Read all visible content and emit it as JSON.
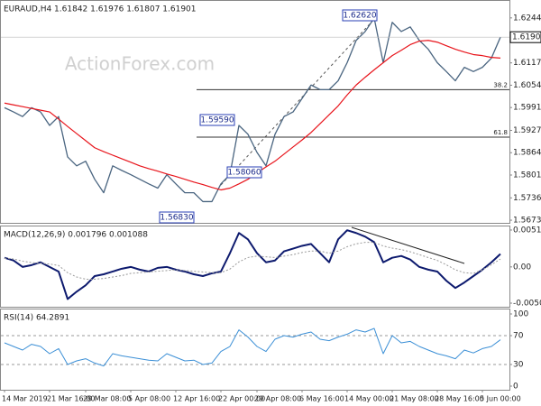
{
  "chart_data": [
    {
      "type": "line",
      "title": "EURAUD,H4  1.61842 1.61976 1.61807 1.61901",
      "watermark": "ActionForex.com",
      "series": [
        {
          "color": "#4a6580",
          "width": 1.3,
          "values": [
            1.5991,
            1.5979,
            1.5966,
            1.5991,
            1.5979,
            1.5941,
            1.5966,
            1.5852,
            1.5827,
            1.584,
            1.5789,
            1.5751,
            1.5827,
            1.5814,
            1.5802,
            1.5789,
            1.5776,
            1.5764,
            1.5802,
            1.5776,
            1.5751,
            1.5751,
            1.5726,
            1.5726,
            1.5776,
            1.5802,
            1.5941,
            1.5916,
            1.5865,
            1.5827,
            1.5916,
            1.5966,
            1.5979,
            1.6017,
            1.6055,
            1.6042,
            1.6042,
            1.6067,
            1.6118,
            1.6181,
            1.6206,
            1.6244,
            1.6118,
            1.6232,
            1.6206,
            1.6219,
            1.6181,
            1.6156,
            1.6118,
            1.6093,
            1.6067,
            1.6105,
            1.6093,
            1.6105,
            1.6131,
            1.61901
          ]
        },
        {
          "color": "#e8141b",
          "width": 1.2,
          "values": [
            1.6004,
            1.5999,
            1.5994,
            1.5989,
            1.5984,
            1.5979,
            1.5959,
            1.5938,
            1.5918,
            1.5898,
            1.5878,
            1.5867,
            1.5857,
            1.5847,
            1.5837,
            1.5827,
            1.5819,
            1.5812,
            1.5804,
            1.5797,
            1.5789,
            1.5781,
            1.5774,
            1.5766,
            1.5759,
            1.5764,
            1.5776,
            1.5789,
            1.5807,
            1.5824,
            1.584,
            1.586,
            1.588,
            1.59,
            1.5921,
            1.5946,
            1.5971,
            1.5996,
            1.6027,
            1.6055,
            1.6077,
            1.6098,
            1.6118,
            1.6138,
            1.6153,
            1.6169,
            1.6179,
            1.6181,
            1.6176,
            1.6166,
            1.6156,
            1.6148,
            1.6141,
            1.6138,
            1.6133,
            1.6131
          ]
        }
      ],
      "ylim": [
        1.5666,
        1.6295
      ],
      "yticks": [
        1.62445,
        1.61175,
        1.60545,
        1.59915,
        {
          "value": 1.5927,
          "label": "1.59270"
        },
        {
          "value": 1.5864,
          "label": "1.58640"
        },
        {
          "value": 1.5801,
          "label": "1.58010"
        },
        1.57365,
        1.56735
      ],
      "levels": [
        {
          "value": 1.6042,
          "label": "38.2"
        },
        {
          "value": 1.5908,
          "label": "61.8"
        }
      ],
      "annotations": [
        "1.62620",
        "1.59590",
        "1.58060",
        "1.56830"
      ]
    },
    {
      "type": "line",
      "title": "MACD(12,26,9) 0.001796 0.001088",
      "series": [
        {
          "color": "#0d1a6e",
          "width": 2,
          "values": [
            0.00127,
            0.00089,
            0,
            0.00025,
            0.00064,
            0,
            -0.00064,
            -0.00445,
            -0.00343,
            -0.00254,
            -0.00127,
            -0.00102,
            -0.00064,
            -0.00025,
            0,
            -0.00038,
            -0.00064,
            -0.00013,
            0,
            -0.00038,
            -0.00064,
            -0.00102,
            -0.00127,
            -0.00089,
            -0.00064,
            0.0019,
            0.0047,
            0.00381,
            0.00191,
            0.00064,
            0.00089,
            0.00216,
            0.00254,
            0.00292,
            0.00318,
            0.00191,
            0.00064,
            0.00381,
            0.00508,
            0.0047,
            0.00419,
            0.00343,
            0.00064,
            0.00127,
            0.00152,
            0.00102,
            0,
            -0.00038,
            -0.00064,
            -0.00191,
            -0.00292,
            -0.00216,
            -0.00127,
            -0.00038,
            0.00064,
            0.001796
          ]
        },
        {
          "color": "#999999",
          "width": 1,
          "style": "dotted",
          "values": [
            0.0012,
            0.0011,
            0.0008,
            0.0006,
            0.0005,
            0.0004,
            0.0002,
            -0.0008,
            -0.0014,
            -0.0017,
            -0.0017,
            -0.0016,
            -0.0014,
            -0.0012,
            -0.0009,
            -0.0008,
            -0.0007,
            -0.0006,
            -0.0005,
            -0.0004,
            -0.0005,
            -0.0006,
            -0.0007,
            -0.0008,
            -0.0008,
            -0.0003,
            0.0007,
            0.0013,
            0.0015,
            0.0014,
            0.0013,
            0.0015,
            0.0017,
            0.002,
            0.0022,
            0.0022,
            0.0019,
            0.0022,
            0.0028,
            0.0032,
            0.0034,
            0.0034,
            0.0029,
            0.0026,
            0.0024,
            0.0021,
            0.0017,
            0.0013,
            0.0009,
            0.0003,
            -0.0004,
            -0.0008,
            -0.0009,
            -0.0004,
            0.0003,
            0.001088
          ]
        }
      ],
      "ylim": [
        -0.00552,
        0.00573
      ],
      "yticks": [
        0.005108,
        {
          "value": 0,
          "label": "0.00"
        },
        -0.005019
      ]
    },
    {
      "type": "line",
      "title": "RSI(14) 64.2891",
      "series": [
        {
          "color": "#3b8fd6",
          "width": 1,
          "values": [
            60,
            55,
            50,
            58,
            55,
            45,
            52,
            30,
            35,
            38,
            32,
            28,
            45,
            42,
            40,
            38,
            36,
            35,
            45,
            40,
            35,
            36,
            30,
            32,
            48,
            55,
            78,
            68,
            55,
            48,
            65,
            70,
            68,
            72,
            75,
            65,
            63,
            68,
            72,
            78,
            75,
            80,
            45,
            70,
            60,
            62,
            55,
            50,
            45,
            42,
            38,
            50,
            46,
            52,
            55,
            64.2891
          ]
        }
      ],
      "ylim": [
        -5,
        107.5
      ],
      "yticks": [
        100,
        70,
        30,
        0
      ],
      "levels": [
        70,
        30
      ],
      "x": [
        "14 Mar 2019",
        null,
        null,
        null,
        null,
        "21 Mar 16:00",
        null,
        null,
        null,
        "29 Mar 08:00",
        null,
        null,
        null,
        null,
        "5 Apr 08:00",
        null,
        null,
        null,
        null,
        "12 Apr 16:00",
        null,
        null,
        null,
        null,
        "22 Apr 00:00",
        null,
        null,
        null,
        "29 Apr 08:00",
        null,
        null,
        null,
        null,
        "6 May 16:00",
        null,
        null,
        null,
        null,
        "14 May 00:00",
        null,
        null,
        null,
        null,
        "21 May 08:00",
        null,
        null,
        null,
        null,
        "28 May 16:00",
        null,
        null,
        null,
        null,
        "5 Jun 00:00",
        null,
        null
      ]
    }
  ]
}
